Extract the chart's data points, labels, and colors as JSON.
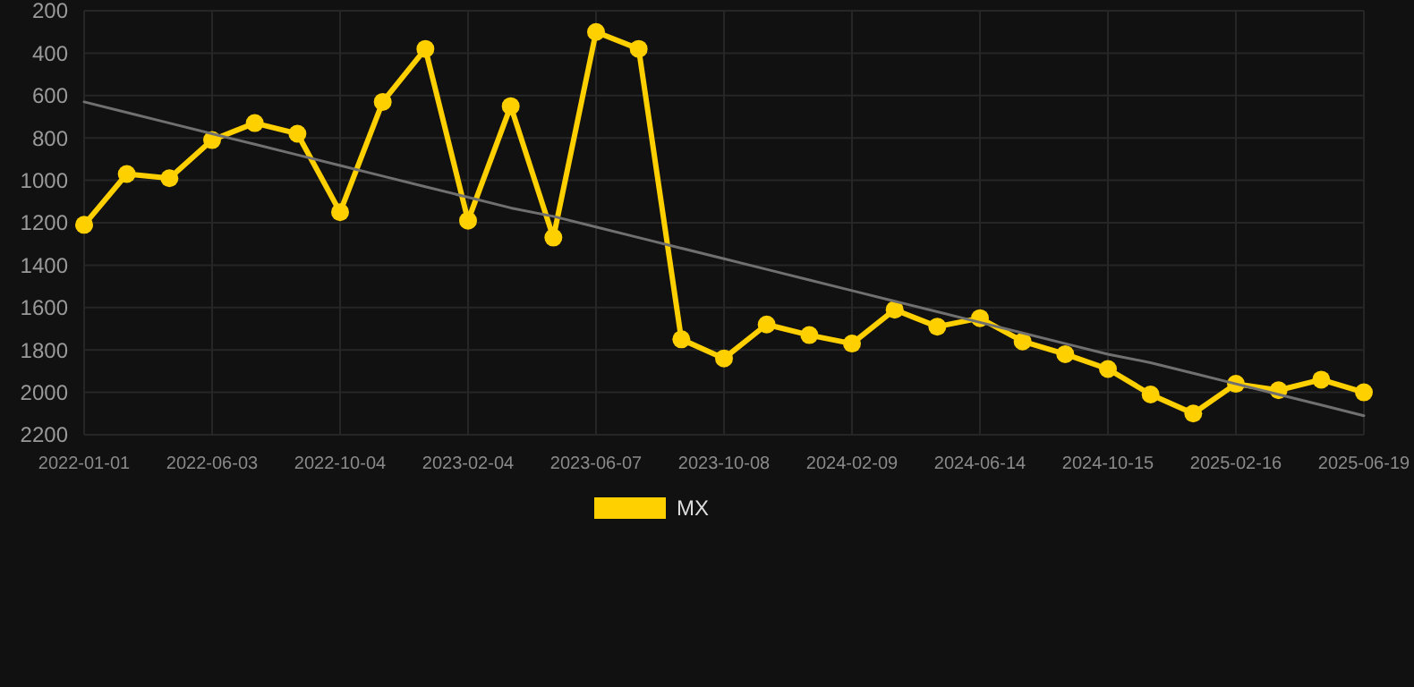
{
  "chart_data": {
    "type": "line",
    "categories": [
      "2022-01-01",
      null,
      null,
      "2022-06-03",
      null,
      null,
      "2022-10-04",
      null,
      null,
      "2023-02-04",
      null,
      null,
      "2023-06-07",
      null,
      null,
      "2023-10-08",
      null,
      null,
      "2024-02-09",
      null,
      null,
      "2024-06-14",
      null,
      null,
      "2024-10-15",
      null,
      null,
      "2025-02-16",
      null,
      null,
      "2025-06-19"
    ],
    "series": [
      {
        "name": "MX",
        "color": "#ffd000",
        "marker": "circle",
        "values": [
          1210,
          970,
          990,
          810,
          730,
          780,
          1150,
          630,
          380,
          1190,
          650,
          1270,
          300,
          380,
          1750,
          1840,
          1680,
          1730,
          1770,
          1610,
          1690,
          1650,
          1760,
          1820,
          1890,
          2010,
          2100,
          1960,
          1990,
          1940,
          2000
        ]
      },
      {
        "type": "line",
        "color": "#707070",
        "marker": "none",
        "values": [
          630,
          680,
          730,
          780,
          830,
          880,
          930,
          980,
          1030,
          1080,
          1130,
          1170,
          1220,
          1270,
          1320,
          1370,
          1420,
          1470,
          1520,
          1570,
          1620,
          1670,
          1720,
          1770,
          1820,
          1860,
          1910,
          1960,
          2010,
          2060,
          2110
        ]
      }
    ],
    "ylim": [
      2200,
      200
    ],
    "yticks": [
      200,
      400,
      600,
      800,
      1000,
      1200,
      1400,
      1600,
      1800,
      2000,
      2200
    ],
    "grid": true,
    "legend": "bottom"
  }
}
